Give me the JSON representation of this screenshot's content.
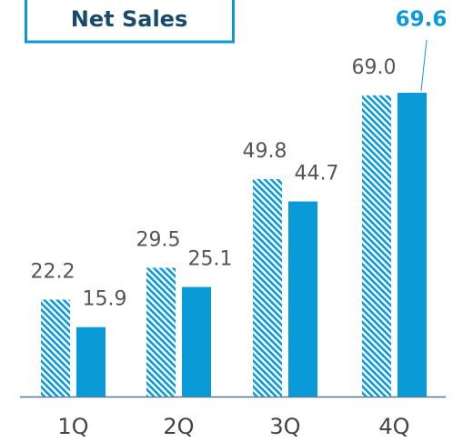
{
  "chart_data": {
    "type": "bar",
    "title": "Net Sales",
    "categories": [
      "1Q",
      "2Q",
      "3Q",
      "4Q"
    ],
    "series": [
      {
        "color": "#0a9ad8",
        "pattern": "hatch",
        "values": [
          22.2,
          29.5,
          49.8,
          69.0
        ],
        "value_labels": [
          "22.2",
          "29.5",
          "49.8",
          "69.0"
        ]
      },
      {
        "color": "#0a9ad8",
        "pattern": "solid",
        "values": [
          15.9,
          25.1,
          44.7,
          69.6
        ],
        "value_labels": [
          "15.9",
          "25.1",
          "44.7",
          "69.6"
        ]
      }
    ]
  }
}
